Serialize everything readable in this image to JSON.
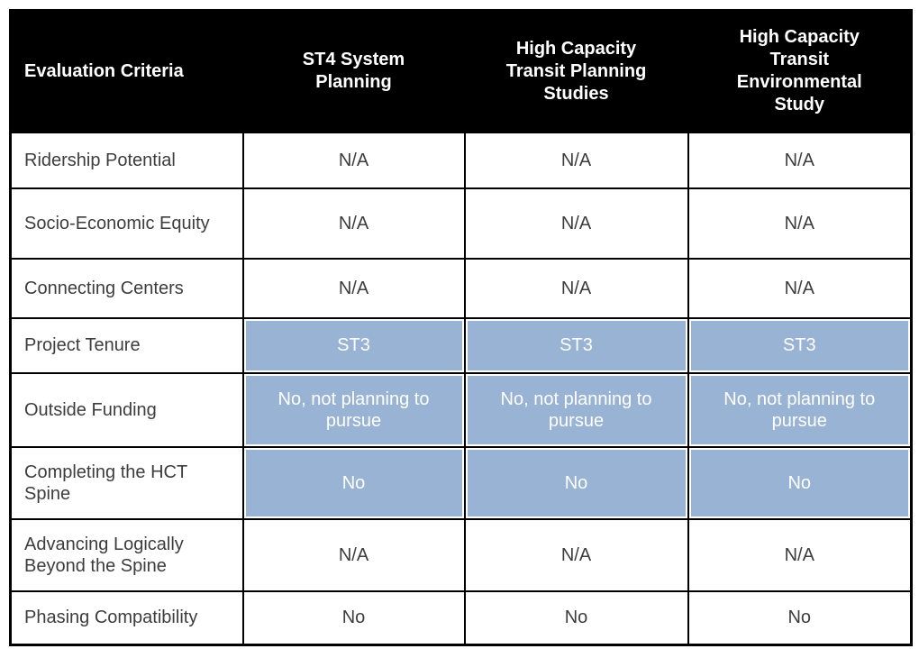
{
  "table": {
    "header": {
      "columns": [
        "Evaluation Criteria",
        "ST4 System Planning",
        "High Capacity Transit Planning Studies",
        "High Capacity Transit Environmental Study"
      ]
    },
    "rows": [
      {
        "criteria": "Ridership Potential",
        "values": [
          "N/A",
          "N/A",
          "N/A"
        ],
        "highlighted": false
      },
      {
        "criteria": "Socio-Economic Equity",
        "values": [
          "N/A",
          "N/A",
          "N/A"
        ],
        "highlighted": false
      },
      {
        "criteria": "Connecting Centers",
        "values": [
          "N/A",
          "N/A",
          "N/A"
        ],
        "highlighted": false
      },
      {
        "criteria": "Project Tenure",
        "values": [
          "ST3",
          "ST3",
          "ST3"
        ],
        "highlighted": true
      },
      {
        "criteria": "Outside Funding",
        "values": [
          "No, not planning to pursue",
          "No, not planning to pursue",
          "No, not planning to pursue"
        ],
        "highlighted": true
      },
      {
        "criteria": "Completing the HCT Spine",
        "values": [
          "No",
          "No",
          "No"
        ],
        "highlighted": true
      },
      {
        "criteria": "Advancing Logically Beyond the Spine",
        "values": [
          "N/A",
          "N/A",
          "N/A"
        ],
        "highlighted": false
      },
      {
        "criteria": "Phasing Compatibility",
        "values": [
          "No",
          "No",
          "No"
        ],
        "highlighted": false
      }
    ],
    "colors": {
      "header_bg": "#000000",
      "header_text": "#ffffff",
      "highlight_bg": "#99b3d4",
      "highlight_text": "#ffffff",
      "body_text": "#3d3d3d",
      "border": "#000000"
    }
  }
}
